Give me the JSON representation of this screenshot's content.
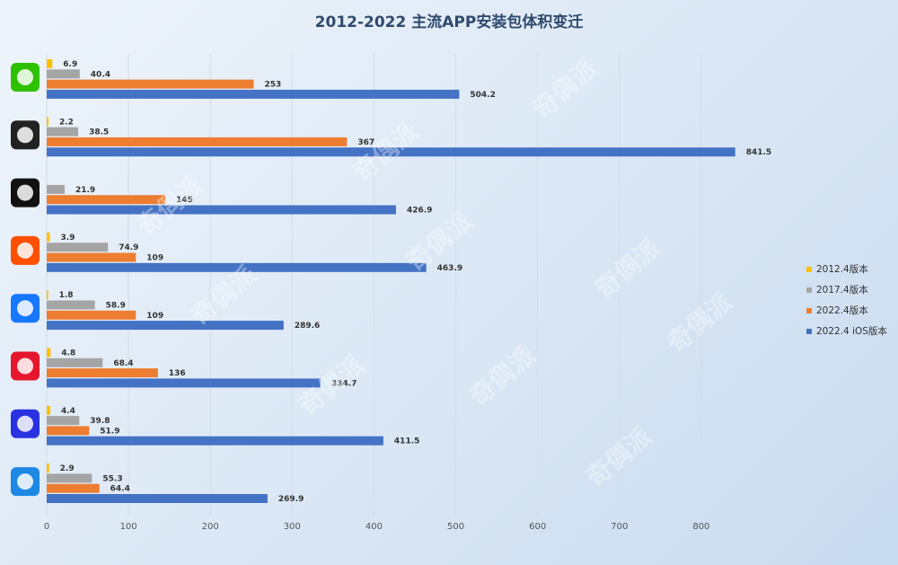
{
  "chart_data": {
    "type": "hbar",
    "title": "2012-2022 主流APP安装包体积变迁",
    "categories": [
      null,
      null,
      null,
      null,
      null,
      null,
      null,
      null
    ],
    "series": [
      {
        "name": "2012.4版本",
        "color": "#ffc000",
        "values": [
          6.9,
          2.2,
          0,
          3.9,
          1.8,
          4.8,
          4.4,
          2.9
        ]
      },
      {
        "name": "2017.4版本",
        "color": "#a5a5a5",
        "values": [
          40.4,
          38.5,
          21.9,
          74.9,
          58.9,
          68.4,
          39.8,
          55.3
        ]
      },
      {
        "name": "2022.4版本",
        "color": "#ed7d31",
        "values": [
          253,
          367,
          145,
          109,
          109,
          136,
          51.9,
          64.4
        ]
      },
      {
        "name": "2022.4 iOS版本",
        "color": "#4472c4",
        "values": [
          504.2,
          841.5,
          426.9,
          463.9,
          289.6,
          334.7,
          411.5,
          269.9
        ]
      }
    ],
    "xlim": [
      0,
      900
    ],
    "xticks": [
      0,
      100,
      200,
      300,
      400,
      500,
      600,
      700,
      800
    ],
    "grid": true,
    "legend": "right",
    "watermark": "奇偶派"
  }
}
